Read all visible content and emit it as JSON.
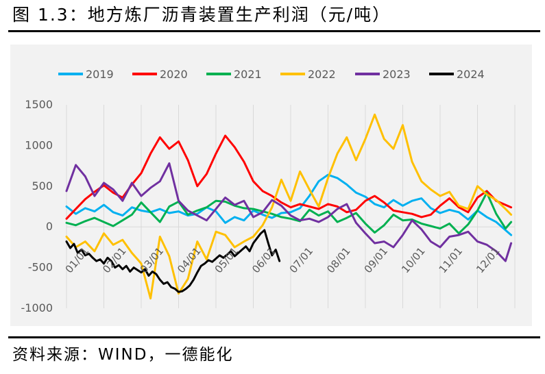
{
  "figure": {
    "title": "图 1.3：地方炼厂沥青装置生产利润（元/吨）",
    "source": "资料来源：WIND，一德能化"
  },
  "chart_data": {
    "type": "line",
    "title": "",
    "xlabel": "",
    "ylabel": "",
    "ylim": [
      -1000,
      1500
    ],
    "yticks": [
      -1000,
      -500,
      0,
      500,
      1000,
      1500
    ],
    "xticks": [
      "01/01",
      "02/01",
      "03/01",
      "04/01",
      "05/01",
      "06/01",
      "07/01",
      "08/01",
      "09/01",
      "10/01",
      "11/01",
      "12/01"
    ],
    "x_unit": "month-of-year (1.0 = 01/01, 13.0 = next 01/01)",
    "xlim": [
      1,
      13
    ],
    "grid": "vertical",
    "legend_position": "top",
    "series": [
      {
        "name": "2019",
        "color": "#00b0f0",
        "x": [
          1.0,
          1.25,
          1.5,
          1.75,
          2.0,
          2.25,
          2.5,
          2.75,
          3.0,
          3.25,
          3.5,
          3.75,
          4.0,
          4.25,
          4.5,
          4.75,
          5.0,
          5.25,
          5.5,
          5.75,
          6.0,
          6.25,
          6.5,
          6.75,
          7.0,
          7.25,
          7.5,
          7.75,
          8.0,
          8.25,
          8.5,
          8.75,
          9.0,
          9.25,
          9.5,
          9.75,
          10.0,
          10.25,
          10.5,
          10.75,
          11.0,
          11.25,
          11.5,
          11.75,
          12.0,
          12.25,
          12.5,
          12.75,
          12.9
        ],
        "values": [
          250,
          160,
          230,
          190,
          270,
          180,
          140,
          240,
          200,
          180,
          220,
          170,
          190,
          140,
          160,
          240,
          190,
          50,
          120,
          80,
          200,
          150,
          110,
          170,
          180,
          230,
          380,
          560,
          640,
          600,
          520,
          420,
          370,
          280,
          240,
          330,
          260,
          320,
          350,
          230,
          170,
          210,
          180,
          90,
          200,
          120,
          60,
          -40,
          -100
        ]
      },
      {
        "name": "2020",
        "color": "#ff0000",
        "x": [
          1.0,
          1.25,
          1.5,
          1.75,
          2.0,
          2.25,
          2.5,
          2.75,
          3.0,
          3.25,
          3.5,
          3.75,
          4.0,
          4.25,
          4.5,
          4.75,
          5.0,
          5.25,
          5.5,
          5.75,
          6.0,
          6.25,
          6.5,
          6.75,
          7.0,
          7.25,
          7.5,
          7.75,
          8.0,
          8.25,
          8.5,
          8.75,
          9.0,
          9.25,
          9.5,
          9.75,
          10.0,
          10.25,
          10.5,
          10.75,
          11.0,
          11.25,
          11.5,
          11.75,
          12.0,
          12.25,
          12.5,
          12.75,
          12.9
        ],
        "values": [
          100,
          220,
          340,
          430,
          510,
          420,
          360,
          520,
          660,
          900,
          1100,
          960,
          1050,
          820,
          500,
          650,
          900,
          1120,
          980,
          800,
          560,
          440,
          380,
          300,
          240,
          280,
          250,
          220,
          280,
          250,
          180,
          210,
          320,
          380,
          300,
          200,
          180,
          160,
          120,
          150,
          260,
          350,
          240,
          180,
          360,
          440,
          320,
          270,
          240
        ]
      },
      {
        "name": "2021",
        "color": "#00b050",
        "x": [
          1.0,
          1.25,
          1.5,
          1.75,
          2.0,
          2.25,
          2.5,
          2.75,
          3.0,
          3.25,
          3.5,
          3.75,
          4.0,
          4.25,
          4.5,
          4.75,
          5.0,
          5.25,
          5.5,
          5.75,
          6.0,
          6.25,
          6.5,
          6.75,
          7.0,
          7.25,
          7.5,
          7.75,
          8.0,
          8.25,
          8.5,
          8.75,
          9.0,
          9.25,
          9.5,
          9.75,
          10.0,
          10.25,
          10.5,
          10.75,
          11.0,
          11.25,
          11.5,
          11.75,
          12.0,
          12.25,
          12.5,
          12.75,
          12.9
        ],
        "values": [
          50,
          20,
          70,
          110,
          60,
          10,
          80,
          150,
          300,
          180,
          60,
          250,
          310,
          150,
          200,
          240,
          320,
          310,
          260,
          230,
          220,
          190,
          160,
          120,
          100,
          70,
          210,
          140,
          190,
          60,
          110,
          170,
          40,
          -70,
          20,
          150,
          80,
          90,
          40,
          10,
          -20,
          40,
          -80,
          30,
          200,
          420,
          160,
          -20,
          60
        ]
      },
      {
        "name": "2022",
        "color": "#ffc000",
        "x": [
          1.0,
          1.25,
          1.5,
          1.75,
          2.0,
          2.25,
          2.5,
          2.75,
          3.0,
          3.25,
          3.5,
          3.75,
          4.0,
          4.25,
          4.5,
          4.75,
          5.0,
          5.25,
          5.5,
          5.75,
          6.0,
          6.25,
          6.5,
          6.75,
          7.0,
          7.25,
          7.5,
          7.75,
          8.0,
          8.25,
          8.5,
          8.75,
          9.0,
          9.25,
          9.5,
          9.75,
          10.0,
          10.25,
          10.5,
          10.75,
          11.0,
          11.25,
          11.5,
          11.75,
          12.0,
          12.25,
          12.5,
          12.75,
          12.9
        ],
        "values": [
          -120,
          -250,
          -180,
          -300,
          -80,
          -220,
          -160,
          -320,
          -450,
          -880,
          -120,
          -360,
          -820,
          -640,
          -180,
          -400,
          -60,
          -100,
          -250,
          -180,
          -120,
          20,
          240,
          580,
          320,
          680,
          460,
          250,
          600,
          900,
          1100,
          820,
          1080,
          1380,
          1080,
          960,
          1250,
          800,
          560,
          460,
          380,
          430,
          260,
          220,
          500,
          400,
          330,
          220,
          150
        ]
      },
      {
        "name": "2023",
        "color": "#7030a0",
        "x": [
          1.0,
          1.25,
          1.5,
          1.75,
          2.0,
          2.25,
          2.5,
          2.75,
          3.0,
          3.25,
          3.5,
          3.75,
          4.0,
          4.25,
          4.5,
          4.75,
          5.0,
          5.25,
          5.5,
          5.75,
          6.0,
          6.25,
          6.5,
          6.75,
          7.0,
          7.25,
          7.5,
          7.75,
          8.0,
          8.25,
          8.5,
          8.75,
          9.0,
          9.25,
          9.5,
          9.75,
          10.0,
          10.25,
          10.5,
          10.75,
          11.0,
          11.25,
          11.5,
          11.75,
          12.0,
          12.25,
          12.5,
          12.75,
          12.9
        ],
        "values": [
          440,
          760,
          620,
          380,
          540,
          460,
          320,
          540,
          380,
          480,
          560,
          780,
          320,
          200,
          140,
          80,
          220,
          360,
          270,
          320,
          120,
          180,
          330,
          260,
          140,
          80,
          100,
          60,
          120,
          220,
          280,
          50,
          -80,
          -200,
          -180,
          -250,
          -100,
          80,
          -30,
          -180,
          -250,
          -120,
          -100,
          -60,
          -180,
          -220,
          -300,
          -420,
          -200
        ]
      },
      {
        "name": "2024",
        "color": "#000000",
        "x": [
          1.0,
          1.1,
          1.2,
          1.3,
          1.4,
          1.5,
          1.6,
          1.7,
          1.8,
          1.9,
          2.0,
          2.1,
          2.2,
          2.3,
          2.4,
          2.5,
          2.6,
          2.7,
          2.8,
          2.9,
          3.0,
          3.1,
          3.2,
          3.3,
          3.4,
          3.5,
          3.6,
          3.7,
          3.8,
          3.9,
          4.0,
          4.1,
          4.2,
          4.3,
          4.4,
          4.5,
          4.6,
          4.7,
          4.8,
          4.9,
          5.0,
          5.1,
          5.2,
          5.3,
          5.4,
          5.5,
          5.6,
          5.7,
          5.8,
          5.9,
          6.0,
          6.1,
          6.2,
          6.3,
          6.4,
          6.5,
          6.6,
          6.7
        ],
        "values": [
          -180,
          -260,
          -210,
          -320,
          -280,
          -350,
          -330,
          -380,
          -420,
          -400,
          -450,
          -380,
          -420,
          -500,
          -470,
          -520,
          -480,
          -550,
          -500,
          -530,
          -560,
          -520,
          -600,
          -550,
          -580,
          -650,
          -700,
          -680,
          -740,
          -760,
          -800,
          -790,
          -760,
          -720,
          -650,
          -560,
          -480,
          -450,
          -410,
          -430,
          -390,
          -350,
          -380,
          -340,
          -300,
          -360,
          -320,
          -280,
          -240,
          -300,
          -200,
          -140,
          -80,
          -40,
          -200,
          -350,
          -280,
          -420
        ]
      }
    ]
  }
}
